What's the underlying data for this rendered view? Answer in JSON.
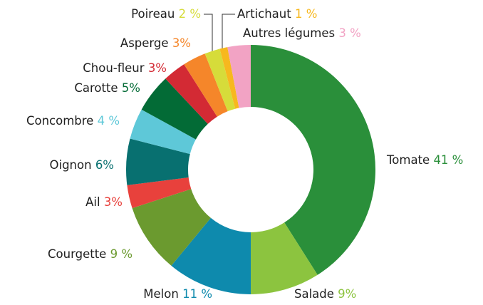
{
  "chart_data": {
    "type": "donut",
    "categories": [
      "Tomate",
      "Salade",
      "Melon",
      "Courgette",
      "Ail",
      "Oignon",
      "Concombre",
      "Carotte",
      "Chou-fleur",
      "Asperge",
      "Poireau",
      "Artichaut",
      "Autres légumes"
    ],
    "values": [
      41,
      9,
      11,
      9,
      3,
      6,
      4,
      5,
      3,
      3,
      2,
      1,
      3
    ],
    "value_labels": [
      "41 %",
      "9%",
      "11 %",
      "9 %",
      "3%",
      "6%",
      "4 %",
      "5%",
      "3%",
      "3%",
      "2 %",
      "1 %",
      "3 %"
    ],
    "colors": [
      "#2a8f3a",
      "#8cc43f",
      "#0e8aad",
      "#6b9a2f",
      "#e8413c",
      "#087070",
      "#5ec8d8",
      "#036b36",
      "#d32a34",
      "#f5862a",
      "#d6dc3a",
      "#f7b81e",
      "#f2a3c4"
    ]
  }
}
